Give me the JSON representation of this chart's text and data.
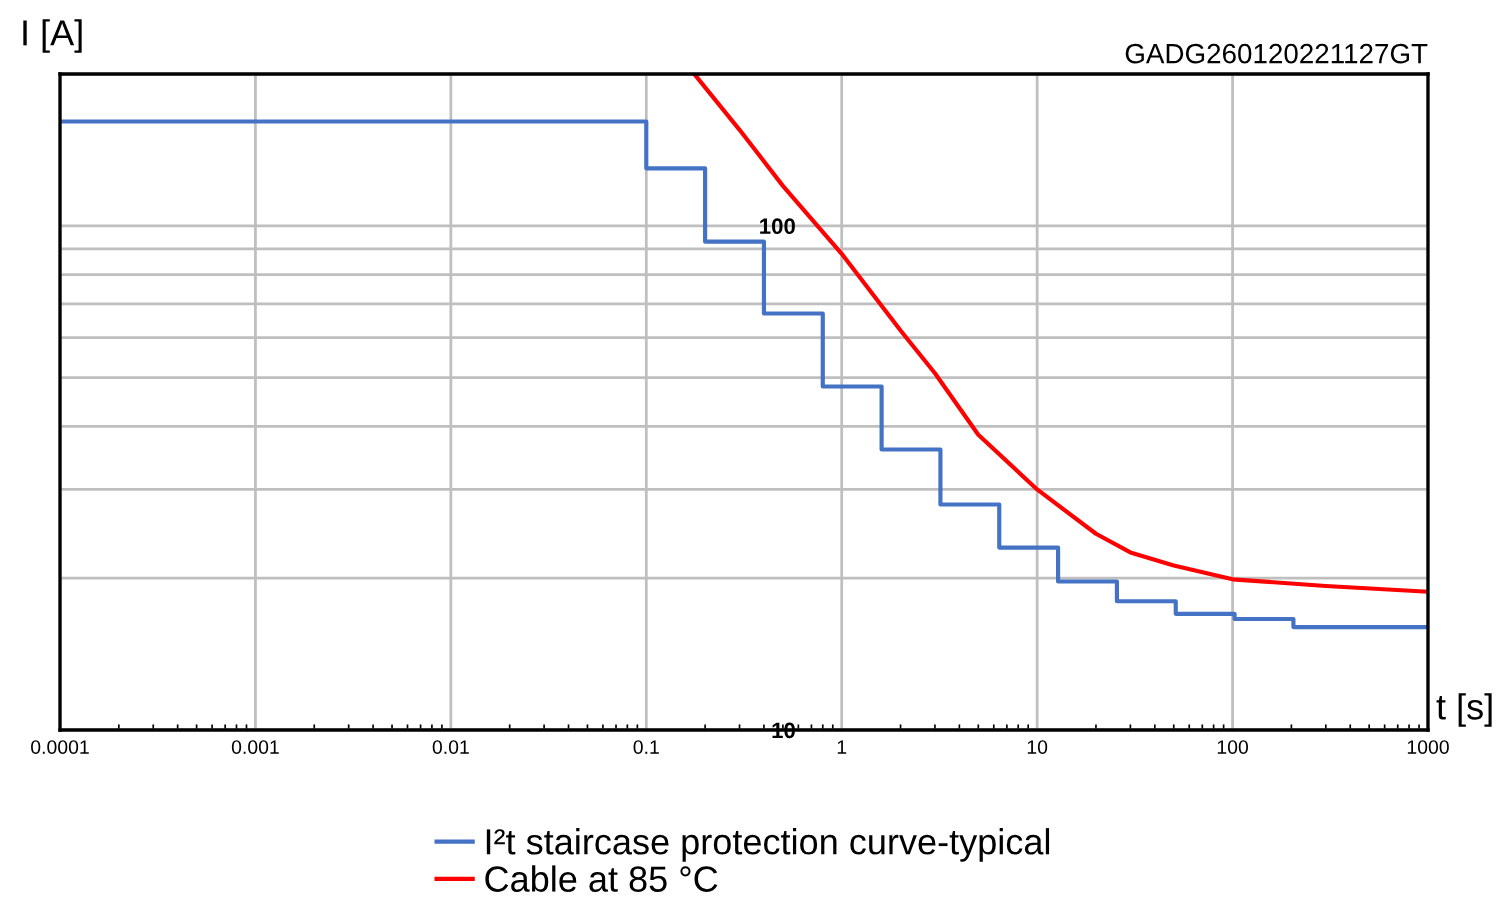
{
  "chart_data": {
    "type": "line",
    "xlabel": "t [s]",
    "ylabel": "I [A]",
    "log": "xy",
    "xlim": [
      0.0001,
      1000
    ],
    "ylim": [
      10,
      200
    ],
    "xticks": [
      {
        "value": 0.0001,
        "label": "0.0001"
      },
      {
        "value": 0.001,
        "label": "0.001"
      },
      {
        "value": 0.01,
        "label": "0.01"
      },
      {
        "value": 0.1,
        "label": "0.1"
      },
      1,
      10,
      100,
      1000
    ],
    "yticks": [
      10,
      {
        "value": 20,
        "label": null
      },
      {
        "value": 30,
        "label": null
      },
      {
        "value": 40,
        "label": null
      },
      {
        "value": 50,
        "label": null
      },
      {
        "value": 60,
        "label": null
      },
      {
        "value": 70,
        "label": null
      },
      {
        "value": 80,
        "label": null
      },
      {
        "value": 90,
        "label": null
      },
      100,
      {
        "value": 200,
        "label": null
      }
    ],
    "grid": true,
    "legend": "bottom",
    "marker": "none",
    "line_style": "solid",
    "annotations": [
      "GADG260120221127GT"
    ],
    "series": [
      {
        "name": "I²t staircase protection curve-typical",
        "type": "step",
        "color": "#4472c4",
        "x": [
          0.0001,
          0.1,
          0.2,
          0.4,
          0.8,
          1.6,
          3.2,
          6.4,
          12.8,
          25.6,
          51.2,
          102.4,
          204.8,
          1000
        ],
        "values": [
          161,
          130,
          93,
          67,
          48,
          36,
          28,
          23,
          19.7,
          18,
          17,
          16.6,
          16,
          16
        ]
      },
      {
        "name": "Cable at 85 °C",
        "color": "#ff0000",
        "x": [
          0.176,
          0.3,
          0.5,
          1,
          2,
          3,
          5,
          10,
          20,
          30,
          50,
          100,
          300,
          1000
        ],
        "values": [
          200,
          155,
          120,
          88,
          62,
          51,
          38.5,
          30,
          24.5,
          22.5,
          21.2,
          19.9,
          19.3,
          18.8
        ]
      }
    ]
  }
}
